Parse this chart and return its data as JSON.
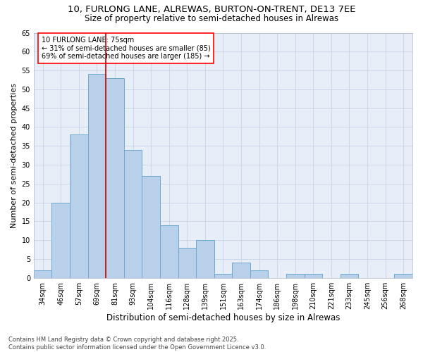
{
  "title_line1": "10, FURLONG LANE, ALREWAS, BURTON-ON-TRENT, DE13 7EE",
  "title_line2": "Size of property relative to semi-detached houses in Alrewas",
  "xlabel": "Distribution of semi-detached houses by size in Alrewas",
  "ylabel": "Number of semi-detached properties",
  "categories": [
    "34sqm",
    "46sqm",
    "57sqm",
    "69sqm",
    "81sqm",
    "93sqm",
    "104sqm",
    "116sqm",
    "128sqm",
    "139sqm",
    "151sqm",
    "163sqm",
    "174sqm",
    "186sqm",
    "198sqm",
    "210sqm",
    "221sqm",
    "233sqm",
    "245sqm",
    "256sqm",
    "268sqm"
  ],
  "values": [
    2,
    20,
    38,
    54,
    53,
    34,
    27,
    14,
    8,
    10,
    1,
    4,
    2,
    0,
    1,
    1,
    0,
    1,
    0,
    0,
    1
  ],
  "bar_color": "#b8d0ea",
  "bar_edge_color": "#6fa8d0",
  "annotation_text": "10 FURLONG LANE: 75sqm\n← 31% of semi-detached houses are smaller (85)\n69% of semi-detached houses are larger (185) →",
  "vline_x": 3.5,
  "vline_color": "#cc0000",
  "ylim": [
    0,
    65
  ],
  "yticks": [
    0,
    5,
    10,
    15,
    20,
    25,
    30,
    35,
    40,
    45,
    50,
    55,
    60,
    65
  ],
  "grid_color": "#c8d4e8",
  "bg_color": "#e8eef8",
  "footer_text": "Contains HM Land Registry data © Crown copyright and database right 2025.\nContains public sector information licensed under the Open Government Licence v3.0.",
  "title_fontsize": 9.5,
  "subtitle_fontsize": 8.5,
  "ylabel_fontsize": 8,
  "xlabel_fontsize": 8.5,
  "tick_fontsize": 7,
  "annot_fontsize": 7,
  "footer_fontsize": 6
}
